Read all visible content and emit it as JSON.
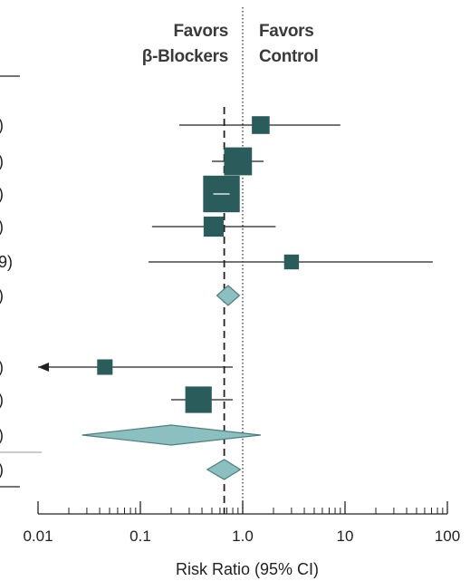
{
  "chart_data": {
    "type": "forest",
    "xlabel": "Risk Ratio (95% CI)",
    "x_scale": "log",
    "xlim": [
      0.01,
      100
    ],
    "x_ticks": [
      "0.01",
      "0.1",
      "1.0",
      "10",
      "100"
    ],
    "favors_left": [
      "Favors",
      "β-Blockers"
    ],
    "favors_right": [
      "Favors",
      "Control"
    ],
    "reference_line": 1.0,
    "pooled_estimate_line": 0.66,
    "colors": {
      "marker": "#2b5c5c",
      "diamond": "#8cbfbf",
      "diamond_edge": "#4d7f80",
      "line": "#222222"
    },
    "rows": [
      {
        "kind": "study",
        "label_tail": ")",
        "rr": 1.5,
        "lo": 0.24,
        "hi": 9.0,
        "weight": 3.0
      },
      {
        "kind": "study",
        "label_tail": ")",
        "rr": 0.9,
        "lo": 0.5,
        "hi": 1.6,
        "weight": 6.5
      },
      {
        "kind": "study",
        "label_tail": ")",
        "rr": 0.62,
        "lo": 0.45,
        "hi": 0.85,
        "weight": 9.5
      },
      {
        "kind": "study",
        "label_tail": ")",
        "rr": 0.52,
        "lo": 0.13,
        "hi": 2.1,
        "weight": 3.8
      },
      {
        "kind": "study",
        "label_tail": "9)",
        "rr": 3.0,
        "lo": 0.12,
        "hi": 72,
        "weight": 2.0
      },
      {
        "kind": "summary",
        "label_tail": ")",
        "rr": 0.72,
        "lo": 0.56,
        "hi": 0.93
      },
      {
        "kind": "study",
        "label_tail": ")",
        "rr": 0.045,
        "lo": 0.01,
        "hi": 0.8,
        "weight": 2.2,
        "arrow_left": true
      },
      {
        "kind": "study",
        "label_tail": ")",
        "rr": 0.37,
        "lo": 0.2,
        "hi": 0.8,
        "weight": 6.0
      },
      {
        "kind": "summary",
        "label_tail": ")",
        "rr": 0.2,
        "lo": 0.027,
        "hi": 1.5
      },
      {
        "kind": "summary",
        "label_tail": ")",
        "rr": 0.66,
        "lo": 0.45,
        "hi": 0.95
      }
    ]
  }
}
